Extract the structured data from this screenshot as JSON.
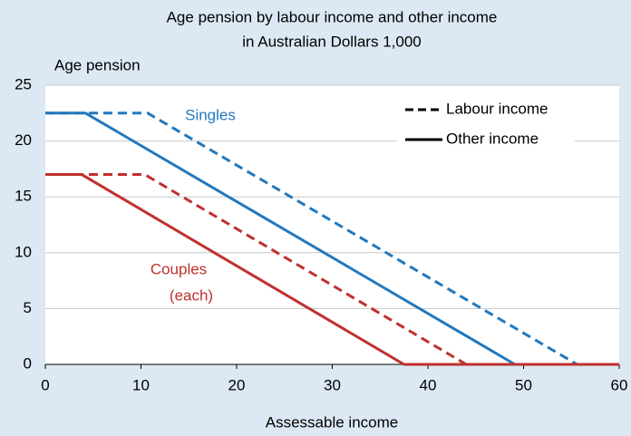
{
  "chart_data": {
    "type": "line",
    "title": [
      "Age pension by labour income and other income",
      "in Australian Dollars 1,000"
    ],
    "y_label": "Age pension",
    "x_label": "Assessable income",
    "xlim": [
      0,
      60
    ],
    "ylim": [
      0,
      25
    ],
    "xticks": [
      0,
      10,
      20,
      30,
      40,
      50,
      60
    ],
    "yticks": [
      0,
      5,
      10,
      15,
      20,
      25
    ],
    "grid": true,
    "legend_position": "upper-right",
    "legend": [
      {
        "label": "Labour income",
        "dashed": true
      },
      {
        "label": "Other income",
        "dashed": false
      }
    ],
    "annotations": [
      {
        "text": "Singles",
        "color": "#2278bd"
      },
      {
        "text": "Couples",
        "color": "#c0302e"
      },
      {
        "text": "(each)",
        "color": "#c0302e"
      }
    ],
    "series": [
      {
        "color": "#2278bd",
        "dashed": true,
        "x": [
          0,
          10.7,
          55.6,
          60
        ],
        "values": [
          22.5,
          22.5,
          0,
          0
        ]
      },
      {
        "color": "#2278bd",
        "dashed": false,
        "x": [
          0,
          4.2,
          49.1,
          60
        ],
        "values": [
          22.5,
          22.5,
          0,
          0
        ]
      },
      {
        "color": "#c0302e",
        "dashed": true,
        "x": [
          0,
          10.4,
          44,
          60
        ],
        "values": [
          17,
          17,
          0,
          0
        ]
      },
      {
        "color": "#c0302e",
        "dashed": false,
        "x": [
          0,
          3.8,
          37.5,
          60
        ],
        "values": [
          17,
          17,
          0,
          0
        ]
      }
    ]
  }
}
